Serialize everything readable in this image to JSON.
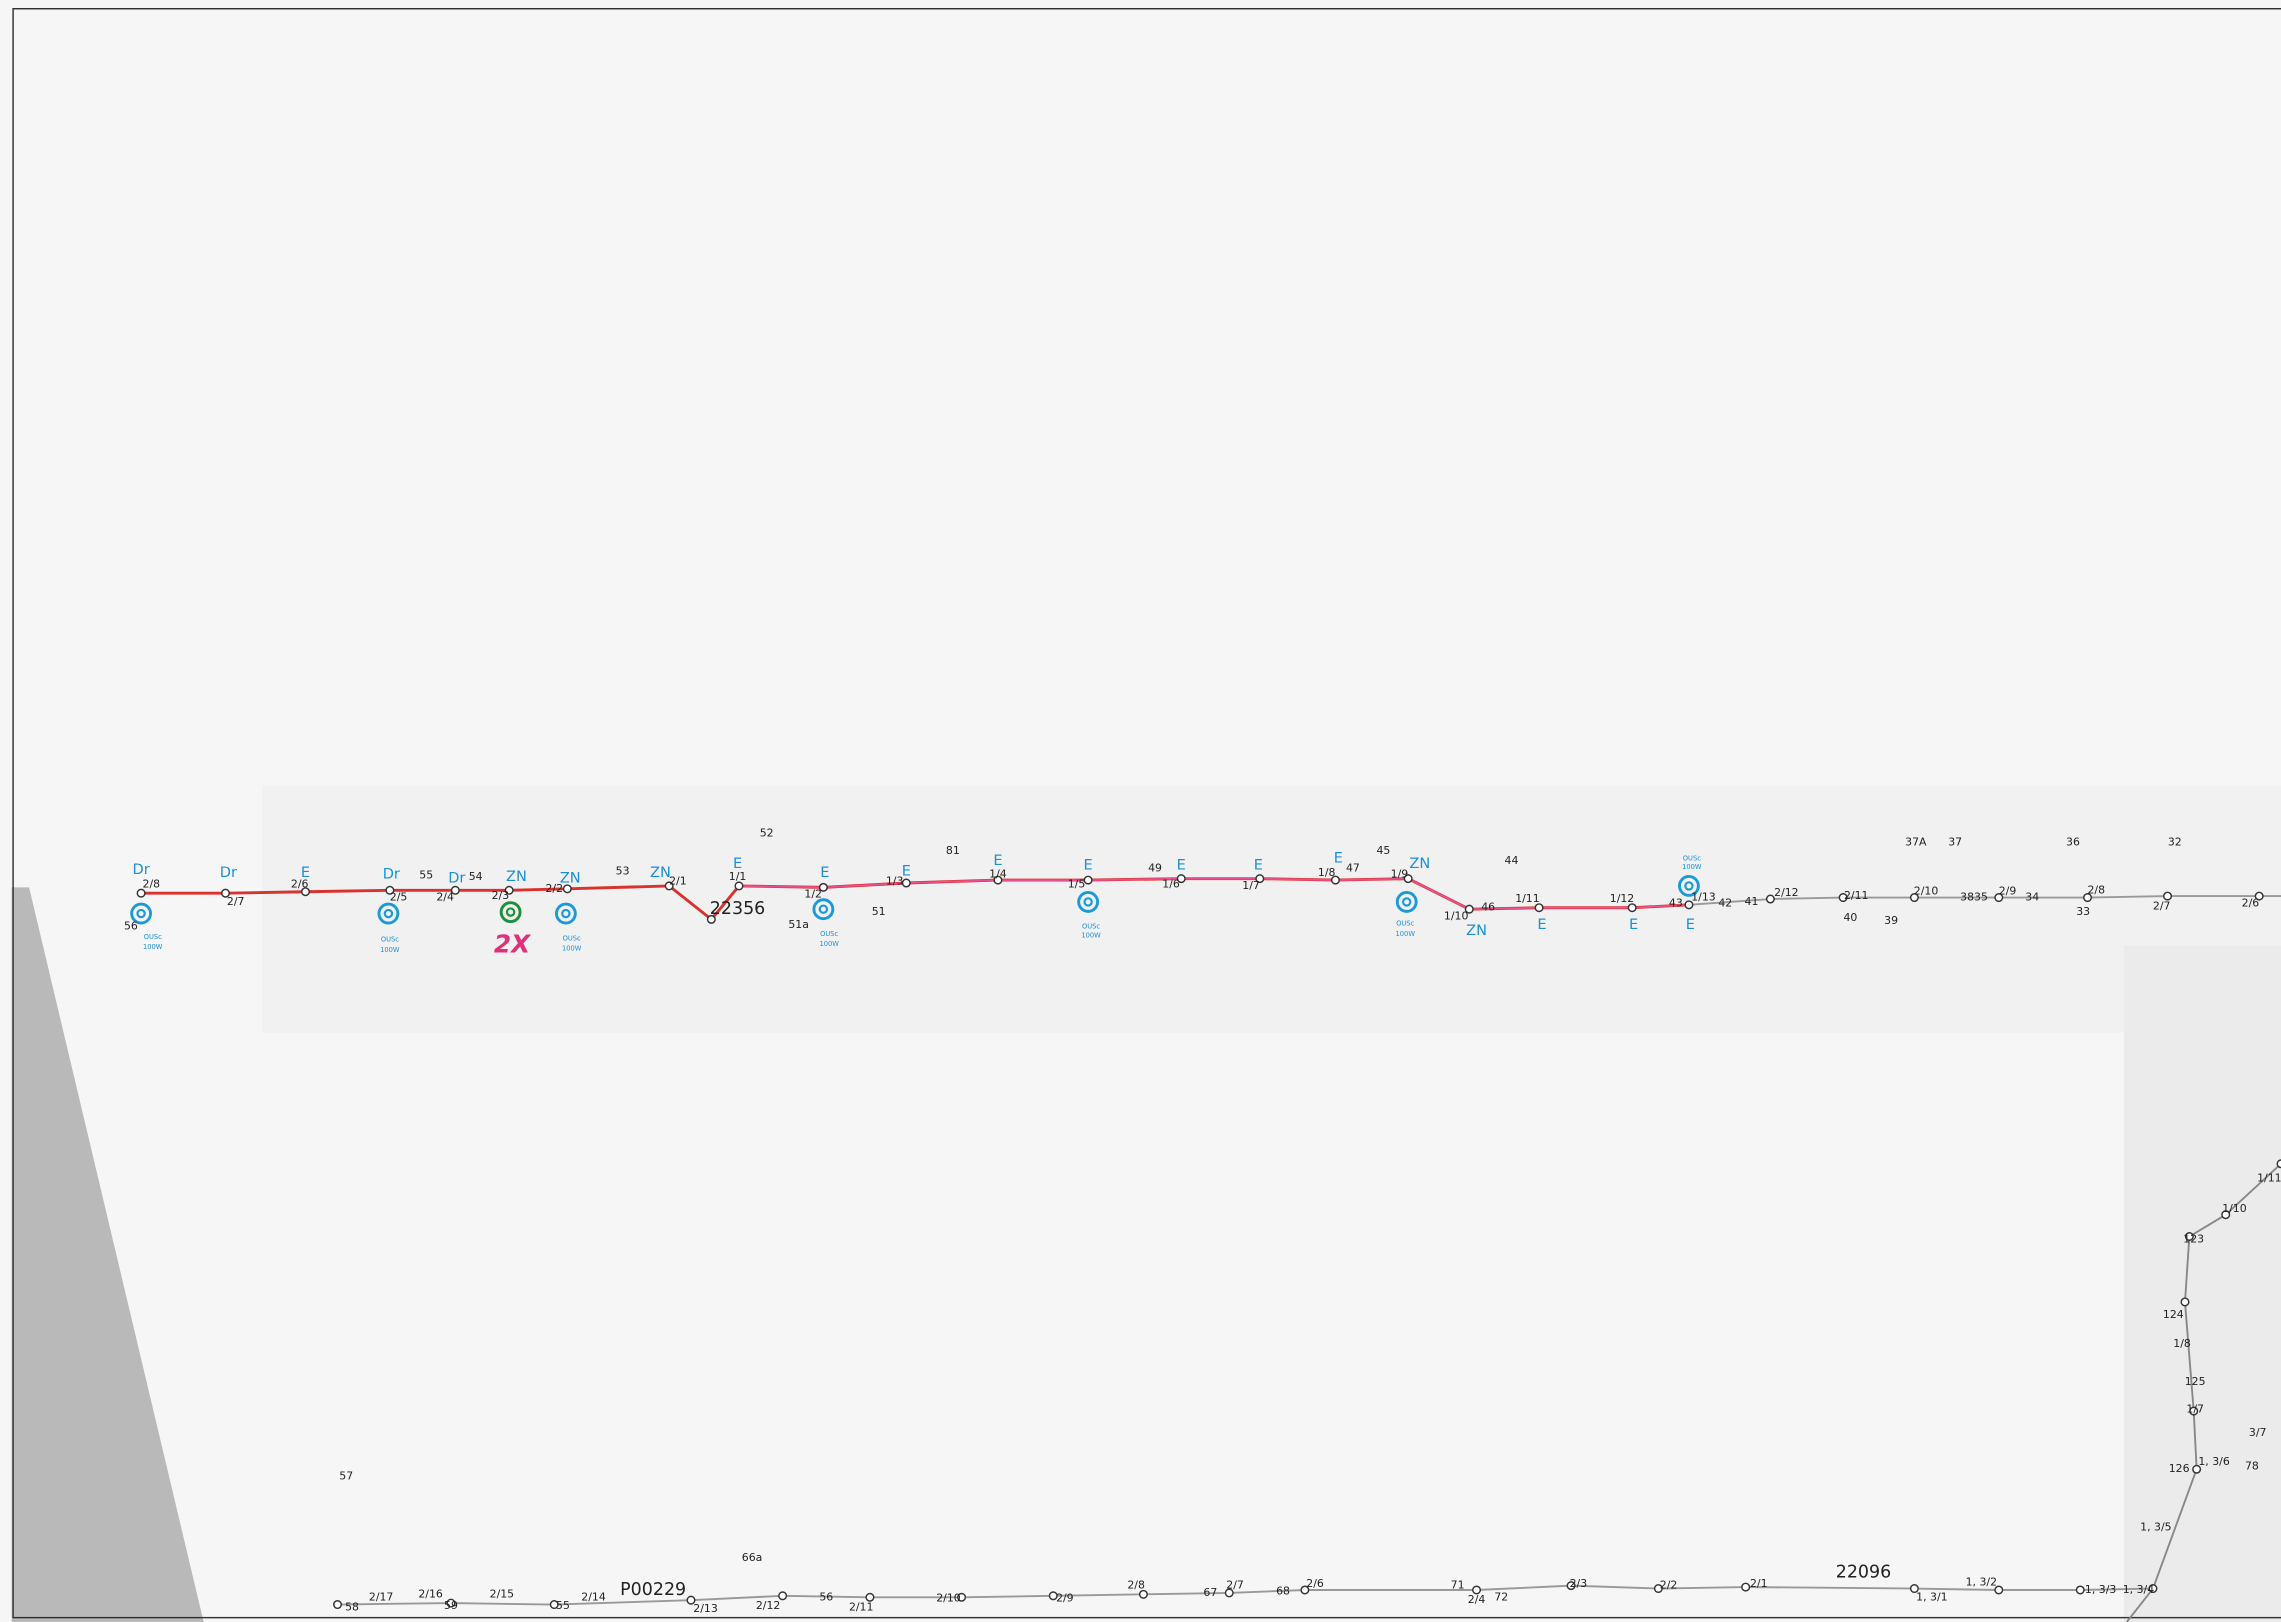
{
  "labels": [
    "Dr",
    "2/8",
    "56",
    "OUSc",
    "100W",
    "Dr",
    "2/7",
    "E",
    "2/6",
    "Dr",
    "2/5",
    "55",
    "OUSc",
    "100W",
    "Dr",
    "54",
    "2/4",
    "ZN",
    "2/3",
    "2X",
    "ZN",
    "2/2",
    "OUSc",
    "100W",
    "53",
    "ZN",
    "2/1",
    "22356",
    "E",
    "1/1",
    "52",
    "E",
    "1/2",
    "51a",
    "51",
    "OUSc",
    "100W",
    "81",
    "E",
    "1/3",
    "E",
    "1/4",
    "E",
    "1/5",
    "OUSc",
    "100W",
    "49",
    "E",
    "1/6",
    "E",
    "1/7",
    "E",
    "1/8",
    "47",
    "45",
    "ZN",
    "1/9",
    "OUSc",
    "100W",
    "44",
    "1/10",
    "46",
    "ZN",
    "1/11",
    "E",
    "1/12",
    "E",
    "OUSc",
    "100W",
    "43",
    "1/13",
    "42",
    "E",
    "41",
    "2/12",
    "2/11",
    "40",
    "39",
    "2/10",
    "37A",
    "37",
    "3835",
    "2/9",
    "34",
    "36",
    "2/8",
    "33",
    "32",
    "2/7",
    "2/6",
    "1/10",
    "123",
    "124",
    "1/8",
    "125",
    "1/7",
    "3/7",
    "126",
    "1, 3/6",
    "78",
    "1, 3/5",
    "1/11",
    "57",
    "58",
    "2/17",
    "2/16",
    "59",
    "2/15",
    "55",
    "2/14",
    "P00229",
    "2/13",
    "66a",
    "2/12",
    "56",
    "2/11",
    "2/10",
    "2/9",
    "2/8",
    "67",
    "2/7",
    "68",
    "2/6",
    "71",
    "2/4",
    "72",
    "2/3",
    "2/2",
    "2/1",
    "22096",
    "1, 3/1",
    "1, 3/2",
    "1, 3/3",
    "1, 3/4"
  ]
}
